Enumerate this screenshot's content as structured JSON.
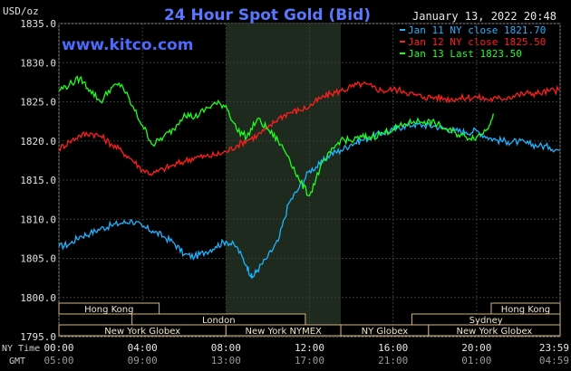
{
  "chart_data": {
    "type": "line",
    "title": "24 Hour Spot Gold (Bid)",
    "watermark": "www.kitco.com",
    "timestamp": "January 13, 2022 20:48",
    "ylabel": "USD/oz",
    "ylim": [
      1795,
      1835
    ],
    "y_ticks": [
      "1835.0",
      "1830.0",
      "1825.0",
      "1820.0",
      "1815.0",
      "1810.0",
      "1805.0",
      "1800.0",
      "1795.0"
    ],
    "x_ticks_ny": [
      "00:00",
      "04:00",
      "08:00",
      "12:00",
      "16:00",
      "20:00",
      "23:59"
    ],
    "x_ticks_gmt": [
      "05:00",
      "09:00",
      "13:00",
      "17:00",
      "21:00",
      "01:00",
      "04:59"
    ],
    "x_row_labels": {
      "ny": "NY Time",
      "gmt": "GMT"
    },
    "shaded_session": "New York NYMEX",
    "sessions": [
      {
        "name": "Hong Kong",
        "row": 0
      },
      {
        "name": "Hong Kong",
        "row": 0
      },
      {
        "name": "London",
        "row": 1
      },
      {
        "name": "Sydney",
        "row": 1
      },
      {
        "name": "New York Globex",
        "row": 2
      },
      {
        "name": "New York NYMEX",
        "row": 2
      },
      {
        "name": "NY Globex",
        "row": 2
      },
      {
        "name": "New York Globex",
        "row": 2
      }
    ],
    "series": [
      {
        "name": "Jan 11 NY close 1821.70",
        "color": "#1eb4ff",
        "x": [
          0,
          0.5,
          1,
          1.5,
          2,
          2.5,
          3,
          3.5,
          4,
          4.5,
          5,
          5.5,
          6,
          6.5,
          7,
          7.5,
          8,
          8.5,
          9,
          9.25,
          9.5,
          10,
          10.5,
          11,
          11.5,
          12,
          12.5,
          13,
          13.5,
          14,
          14.5,
          15,
          15.5,
          16,
          16.5,
          17,
          17.5,
          18,
          18.5,
          19,
          19.5,
          20,
          20.5,
          21,
          21.5,
          22,
          22.5,
          23,
          23.5,
          23.98
        ],
        "y": [
          1806.5,
          1806.8,
          1807.8,
          1808.2,
          1808.8,
          1809.2,
          1809.5,
          1809.8,
          1809.0,
          1808.5,
          1807.8,
          1807.0,
          1805.5,
          1805.2,
          1805.8,
          1806.5,
          1807.2,
          1806.5,
          1804.0,
          1802.5,
          1803.5,
          1805.2,
          1807.2,
          1812.0,
          1814.0,
          1816.2,
          1817.0,
          1818.3,
          1818.8,
          1819.6,
          1820.1,
          1820.6,
          1821.0,
          1821.4,
          1821.9,
          1822.1,
          1822.0,
          1821.9,
          1821.6,
          1821.3,
          1821.1,
          1821.3,
          1820.5,
          1820.1,
          1819.9,
          1819.9,
          1819.6,
          1819.4,
          1819.2,
          1818.8
        ]
      },
      {
        "name": "Jan 12 NY close 1825.50",
        "color": "#ff1e1e",
        "x": [
          0,
          0.5,
          1,
          1.5,
          2,
          2.5,
          3,
          3.5,
          4,
          4.5,
          5,
          5.5,
          6,
          6.5,
          7,
          7.5,
          8,
          8.5,
          9,
          9.5,
          10,
          10.5,
          11,
          11.5,
          12,
          12.5,
          13,
          13.5,
          14,
          14.5,
          15,
          15.5,
          16,
          16.5,
          17,
          17.5,
          18,
          18.5,
          19,
          19.5,
          20,
          20.5,
          21,
          21.5,
          22,
          22.5,
          23,
          23.5,
          23.98
        ],
        "y": [
          1819.0,
          1819.9,
          1820.7,
          1821.0,
          1820.6,
          1819.6,
          1818.7,
          1817.6,
          1816.3,
          1815.8,
          1816.4,
          1816.9,
          1817.4,
          1817.9,
          1818.0,
          1818.2,
          1818.6,
          1819.4,
          1820.1,
          1820.7,
          1821.6,
          1822.9,
          1823.6,
          1823.9,
          1824.4,
          1825.4,
          1826.0,
          1826.4,
          1826.9,
          1827.3,
          1826.9,
          1826.4,
          1826.6,
          1826.4,
          1825.9,
          1825.6,
          1825.6,
          1825.4,
          1825.4,
          1825.5,
          1825.6,
          1825.3,
          1825.4,
          1825.6,
          1825.9,
          1826.1,
          1826.1,
          1826.4,
          1826.5
        ]
      },
      {
        "name": "Jan 13 Last 1823.50",
        "color": "#1eff1e",
        "x": [
          0,
          0.5,
          1,
          1.5,
          2,
          2.5,
          3,
          3.5,
          4,
          4.5,
          5,
          5.5,
          6,
          6.5,
          7,
          7.5,
          8,
          8.5,
          9,
          9.5,
          10,
          10.5,
          11,
          11.5,
          12,
          12.5,
          13,
          13.5,
          14,
          14.5,
          15,
          15.5,
          16,
          16.5,
          17,
          17.5,
          18,
          18.5,
          19,
          19.5,
          20,
          20.5,
          20.8
        ],
        "y": [
          1826.5,
          1827.2,
          1828.0,
          1826.5,
          1825.0,
          1826.8,
          1827.2,
          1824.5,
          1822.0,
          1819.5,
          1820.5,
          1821.5,
          1823.5,
          1823.0,
          1824.0,
          1824.8,
          1824.5,
          1821.5,
          1820.5,
          1822.8,
          1821.5,
          1820.0,
          1818.0,
          1815.0,
          1813.0,
          1816.5,
          1818.5,
          1820.2,
          1820.0,
          1820.5,
          1820.5,
          1821.0,
          1821.5,
          1822.0,
          1822.5,
          1822.5,
          1822.3,
          1821.5,
          1821.0,
          1820.5,
          1820.5,
          1821.5,
          1823.5
        ]
      }
    ]
  }
}
